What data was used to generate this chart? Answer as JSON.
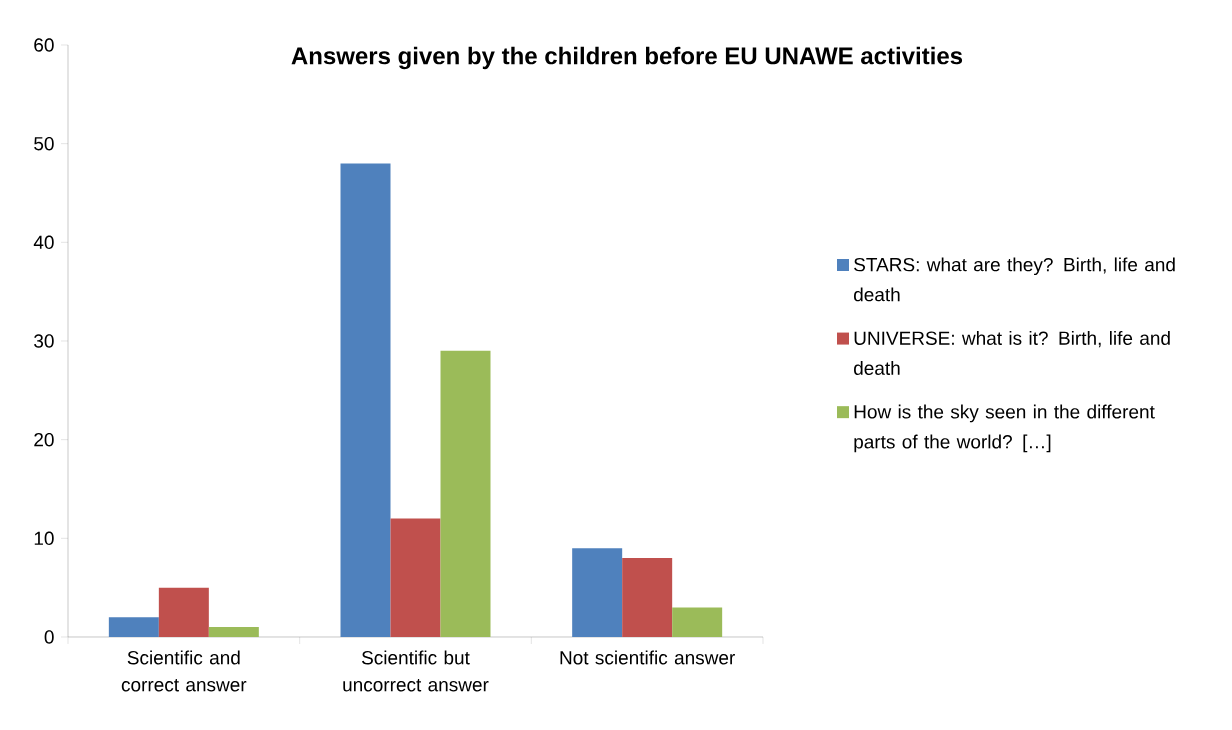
{
  "chart_data": {
    "type": "bar",
    "title": "Answers given by the children before EU UNAWE activities",
    "categories": [
      "Scientific and correct answer",
      "Scientific but uncorrect  answer",
      "Not scientific answer"
    ],
    "series": [
      {
        "name": "STARS: what are they? Birth, life and death",
        "color": "#4f81bd",
        "values": [
          2,
          48,
          9
        ]
      },
      {
        "name": "UNIVERSE: what is it? Birth, life and death",
        "color": "#c0504d",
        "values": [
          5,
          12,
          8
        ]
      },
      {
        "name": "How is the sky seen in the different parts of the world? […]",
        "color": "#9bbb59",
        "values": [
          1,
          29,
          3
        ]
      }
    ],
    "ylim": [
      0,
      60
    ],
    "yticks": [
      0,
      10,
      20,
      30,
      40,
      50,
      60
    ],
    "legend": "right"
  }
}
